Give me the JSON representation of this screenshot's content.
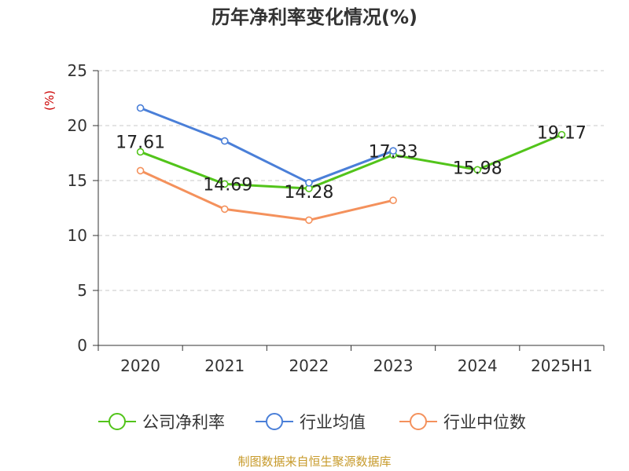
{
  "chart_data": {
    "type": "line",
    "title": "历年净利率变化情况(%)",
    "ylabel": "(%)",
    "xlabel": "",
    "categories": [
      "2020",
      "2021",
      "2022",
      "2023",
      "2024",
      "2025H1"
    ],
    "ylim": [
      0,
      25
    ],
    "yticks": [
      0,
      5,
      10,
      15,
      20,
      25
    ],
    "grid": true,
    "legend_position": "bottom",
    "series": [
      {
        "name": "公司净利率",
        "color": "#52c41a",
        "values": [
          17.61,
          14.69,
          14.28,
          17.33,
          15.98,
          19.17
        ],
        "labels": [
          "17.61",
          "14.69",
          "14.28",
          "17.33",
          "15.98",
          "19.17"
        ]
      },
      {
        "name": "行业均值",
        "color": "#4a7fd8",
        "values": [
          21.6,
          18.6,
          14.8,
          17.7,
          null,
          null
        ],
        "labels": []
      },
      {
        "name": "行业中位数",
        "color": "#f4915c",
        "values": [
          15.9,
          12.4,
          11.4,
          13.2,
          null,
          null
        ],
        "labels": []
      }
    ]
  },
  "footer": {
    "source": "制图数据来自恒生聚源数据库"
  }
}
